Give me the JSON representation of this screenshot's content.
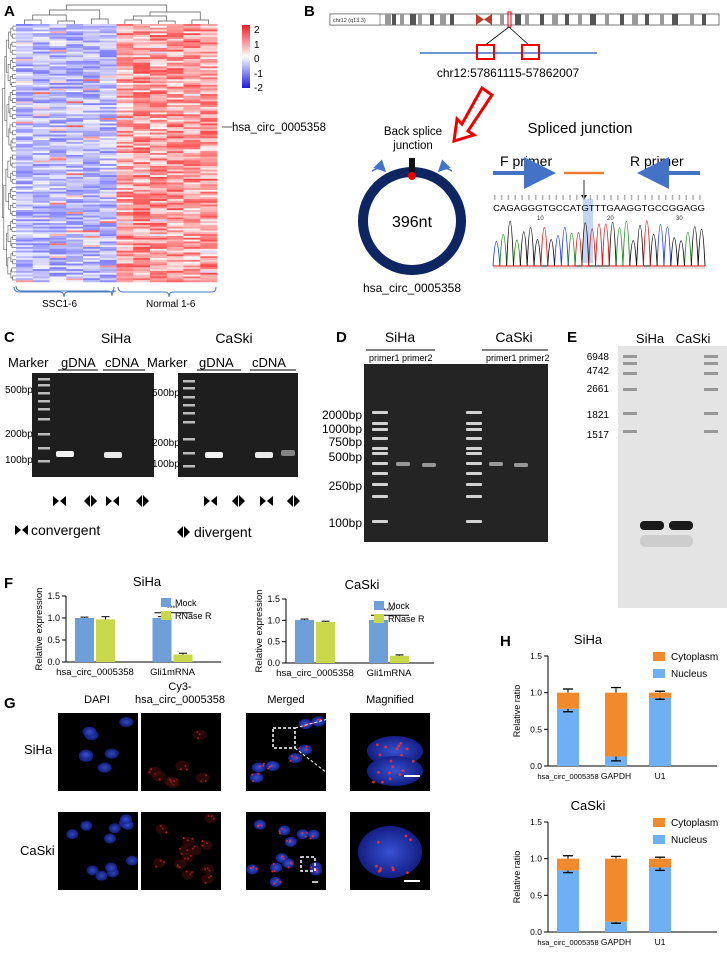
{
  "panel_letters": [
    "A",
    "B",
    "C",
    "D",
    "E",
    "F",
    "G",
    "H"
  ],
  "heatmap": {
    "colorbar_ticks": [
      "2",
      "1",
      "0",
      "-1",
      "-2"
    ],
    "group_labels": [
      "SSC1-6",
      "Normal 1-6"
    ],
    "annotation": "hsa_circ_0005358"
  },
  "panel_b": {
    "coordinates": "chr12:57861115-57862007",
    "back_splice_label": "Back splice junction",
    "circle_size": "396nt",
    "circle_name": "hsa_circ_0005358",
    "spliced_junction_title": "Spliced junction",
    "f_primer": "F primer",
    "r_primer": "R primer",
    "sequence": "CAGAGGGTGCCATGTTTGAAGGTGCCGGAGG",
    "seq_ticks": [
      "10",
      "20",
      "30"
    ]
  },
  "panel_c": {
    "siha_title": "SiHa",
    "caski_title": "CaSki",
    "marker": "Marker",
    "gdna": "gDNA",
    "cdna": "cDNA",
    "siha_ladder": [
      "500bp",
      "200bp",
      "100bp"
    ],
    "caski_ladder": [
      "500bp",
      "200bp",
      "100bp"
    ],
    "legend_convergent": "convergent",
    "legend_divergent": "divergent"
  },
  "panel_d": {
    "siha_title": "SiHa",
    "caski_title": "CaSki",
    "siha_primer1": "primer1",
    "siha_primer2": "primer2",
    "caski_primer1": "primer1",
    "caski_primer2": "primer2",
    "ladder": [
      "2000bp",
      "1000bp",
      "750bp",
      "500bp",
      "250bp",
      "100bp"
    ]
  },
  "panel_e": {
    "siha": "SiHa",
    "caski": "CaSki",
    "ladder": [
      "6948",
      "4742",
      "2661",
      "1821",
      "1517"
    ]
  },
  "panel_g": {
    "col_headers": [
      "DAPI",
      "Cy3-\nhsa_circ_0005358",
      "Merged",
      "Magnified"
    ],
    "col_header_line1": "Cy3-",
    "col_header_line2": "hsa_circ_0005358",
    "row_labels": [
      "SiHa",
      "CaSki"
    ]
  },
  "chart_data": [
    {
      "type": "bar",
      "title": "SiHa",
      "ylabel": "Relative expression",
      "categories": [
        "hsa_circ_0005358",
        "Gli1mRNA"
      ],
      "series": [
        {
          "name": "Mock",
          "values": [
            1.0,
            1.0
          ],
          "errors": [
            0.02,
            0.03
          ],
          "color": "#6f9fd8"
        },
        {
          "name": "RNase R",
          "values": [
            0.97,
            0.17
          ],
          "errors": [
            0.06,
            0.03
          ],
          "color": "#c9d84a"
        }
      ],
      "ylim": [
        0,
        1.5
      ],
      "yticks": [
        "0.0",
        "0.5",
        "1.0",
        "1.5"
      ],
      "significance": "****",
      "legend": "top-right"
    },
    {
      "type": "bar",
      "title": "CaSki",
      "ylabel": "Relative expression",
      "categories": [
        "hsa_circ_0005358",
        "Gli1mRNA"
      ],
      "series": [
        {
          "name": "Mock",
          "values": [
            1.01,
            1.01
          ],
          "errors": [
            0.02,
            0.02
          ],
          "color": "#6f9fd8"
        },
        {
          "name": "RNase R",
          "values": [
            0.96,
            0.17
          ],
          "errors": [
            0.02,
            0.02
          ],
          "color": "#c9d84a"
        }
      ],
      "ylim": [
        0,
        1.5
      ],
      "yticks": [
        "0.0",
        "0.5",
        "1.0",
        "1.5"
      ],
      "significance": "****",
      "legend": "top-right"
    },
    {
      "type": "bar",
      "stacked": true,
      "title": "SiHa",
      "ylabel": "Relative ratio",
      "categories": [
        "hsa_circ_0005358",
        "GAPDH",
        "U1"
      ],
      "series": [
        {
          "name": "Nucleus",
          "values": [
            0.78,
            0.13,
            0.93
          ],
          "errors": [
            0.04,
            0.06,
            0.02
          ],
          "color": "#6fb0f5"
        },
        {
          "name": "Cytoplasm",
          "values": [
            0.22,
            0.87,
            0.07
          ],
          "color": "#f08a2c"
        }
      ],
      "totals_error": [
        0.05,
        0.07,
        0.02
      ],
      "ylim": [
        0,
        1.5
      ],
      "yticks": [
        "0.0",
        "0.5",
        "1.0",
        "1.5"
      ],
      "legend": "top-right"
    },
    {
      "type": "bar",
      "stacked": true,
      "title": "CaSki",
      "ylabel": "Relative ratio",
      "categories": [
        "hsa_circ_0005358",
        "GAPDH",
        "U1"
      ],
      "series": [
        {
          "name": "Nucleus",
          "values": [
            0.84,
            0.14,
            0.88
          ],
          "errors": [
            0.03,
            0.02,
            0.04
          ],
          "color": "#6fb0f5"
        },
        {
          "name": "Cytoplasm",
          "values": [
            0.16,
            0.86,
            0.12
          ],
          "color": "#f08a2c"
        }
      ],
      "totals_error": [
        0.04,
        0.03,
        0.02
      ],
      "ylim": [
        0,
        1.5
      ],
      "yticks": [
        "0.0",
        "0.5",
        "1.0",
        "1.5"
      ],
      "legend": "top-right"
    }
  ]
}
